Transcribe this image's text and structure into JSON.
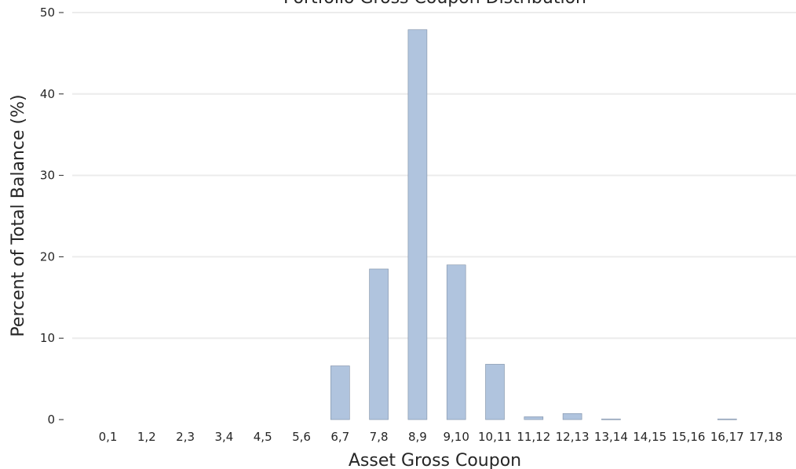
{
  "chart_data": {
    "type": "bar",
    "title": "Portfolio Gross Coupon Distribution",
    "xlabel": "Asset Gross Coupon",
    "ylabel": "Percent of Total Balance (%)",
    "categories": [
      "0,1",
      "1,2",
      "2,3",
      "3,4",
      "4,5",
      "5,6",
      "6,7",
      "7,8",
      "8,9",
      "9,10",
      "10,11",
      "11,12",
      "12,13",
      "13,14",
      "14,15",
      "15,16",
      "16,17",
      "17,18"
    ],
    "values": [
      0,
      0,
      0,
      0,
      0,
      0,
      6.6,
      18.5,
      47.9,
      19.0,
      6.8,
      0.35,
      0.75,
      0.08,
      0,
      0,
      0.08,
      0
    ],
    "ylim": [
      0,
      50
    ],
    "yticks": [
      0,
      10,
      20,
      30,
      40,
      50
    ],
    "grid": true,
    "colors": {
      "bar_fill": "#b0c4de",
      "bar_stroke": "#7f8fa6",
      "grid": "#ececec",
      "text": "#262626"
    }
  }
}
